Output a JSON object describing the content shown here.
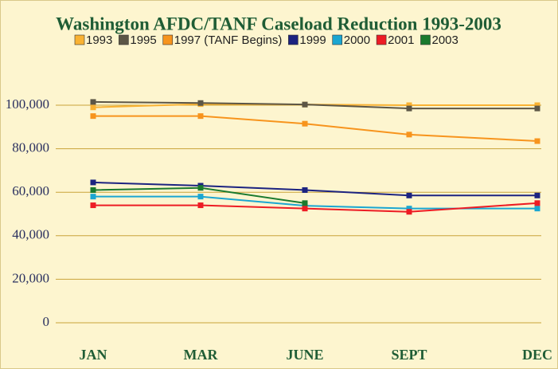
{
  "chart_data": {
    "type": "line",
    "title": "Washington AFDC/TANF Caseload Reduction 1993-2003",
    "categories": [
      "JAN",
      "MAR",
      "JUNE",
      "SEPT",
      "DEC"
    ],
    "series": [
      {
        "name": "1993",
        "color": "#f9b233",
        "values": [
          99000,
          100500,
          100300,
          100000,
          100000
        ]
      },
      {
        "name": "1995",
        "color": "#5c5646",
        "values": [
          101500,
          101000,
          100300,
          98500,
          98500
        ]
      },
      {
        "name": "1997 (TANF Begins)",
        "color": "#f7941d",
        "values": [
          95000,
          95000,
          91500,
          86500,
          83500
        ]
      },
      {
        "name": "1999",
        "color": "#1c2380",
        "values": [
          64500,
          63000,
          61000,
          58500,
          58500
        ]
      },
      {
        "name": "2000",
        "color": "#1ba6d1",
        "values": [
          58000,
          58000,
          53800,
          52500,
          52500
        ]
      },
      {
        "name": "2001",
        "color": "#ed1c24",
        "values": [
          54000,
          54000,
          52500,
          51000,
          55000
        ]
      },
      {
        "name": "2003",
        "color": "#1a7a2e",
        "values": [
          61000,
          62000,
          55000,
          null,
          null
        ]
      }
    ],
    "ylim": [
      0,
      100000
    ],
    "yticks": [
      0,
      {
        "value": 20000,
        "label": "20,000"
      },
      {
        "value": 40000,
        "label": "40,000"
      },
      {
        "value": 60000,
        "label": "60,000"
      },
      {
        "value": 80000,
        "label": "80,000"
      },
      {
        "value": 100000,
        "label": "100,000"
      }
    ],
    "grid": true,
    "legend": "top"
  }
}
